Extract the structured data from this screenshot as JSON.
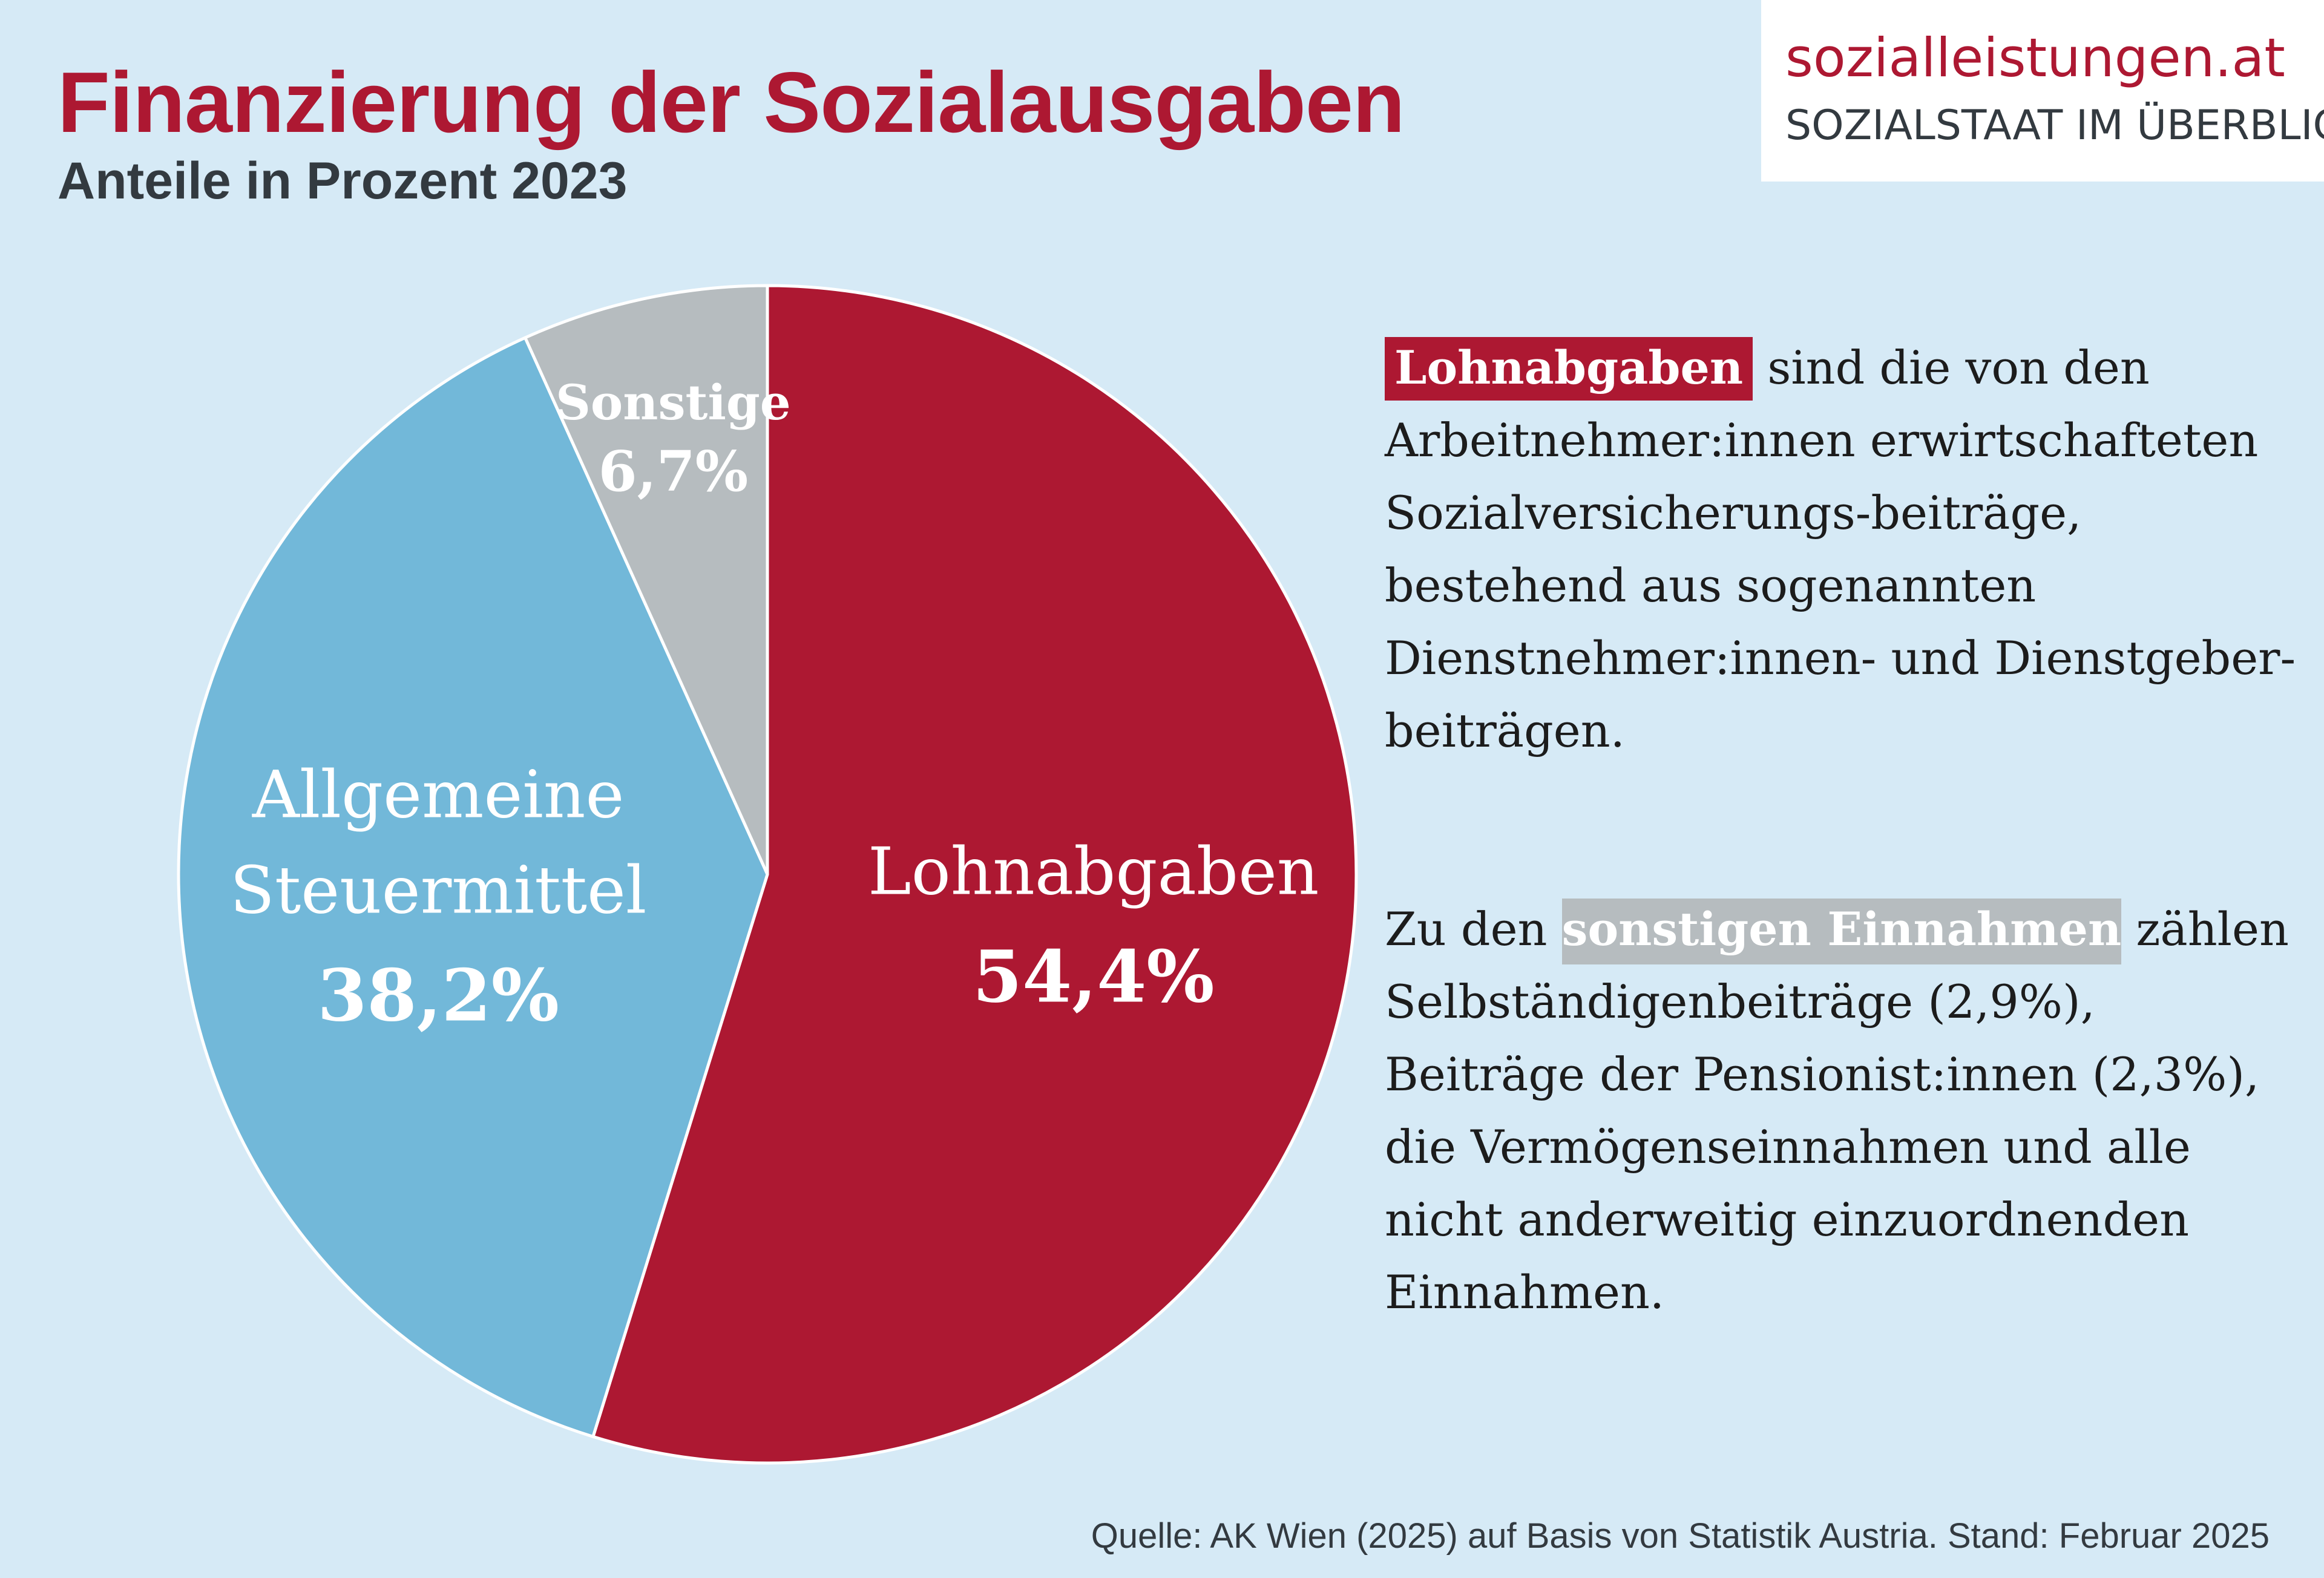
{
  "header": {
    "title": "Finanzierung der Sozialausgaben",
    "subtitle": "Anteile in Prozent 2023"
  },
  "logo": {
    "name": "sozialleistungen.at",
    "tagline": "SOZIALSTAAT IM ÜBERBLICK"
  },
  "colors": {
    "lohnabgaben": "#ad1832",
    "steuermittel": "#72b8d9",
    "sonstige": "#b6bcbf",
    "background": "#d6eaf6"
  },
  "chart_data": {
    "type": "pie",
    "title": "Finanzierung der Sozialausgaben",
    "subtitle": "Anteile in Prozent 2023",
    "start_angle_deg": 0,
    "direction": "clockwise",
    "slices": [
      {
        "key": "lohnabgaben",
        "label_lines": [
          "Lohnabgaben"
        ],
        "value": 54.4,
        "value_label": "54,4%",
        "color": "#ad1832"
      },
      {
        "key": "steuermittel",
        "label_lines": [
          "Allgemeine",
          "Steuermittel"
        ],
        "value": 38.2,
        "value_label": "38,2%",
        "color": "#72b8d9"
      },
      {
        "key": "sonstige",
        "label_lines": [
          "Sonstige"
        ],
        "value": 6.7,
        "value_label": "6,7%",
        "color": "#b6bcbf"
      }
    ]
  },
  "explanations": {
    "lohnabgaben": {
      "highlight": "Lohnabgaben",
      "text": " sind die von den Arbeitnehmer:innen erwirtschafteten Sozialversicherungs-beiträge, bestehend aus sogenannten Dienstnehmer:innen- und Dienstgeber-beiträgen."
    },
    "sonstige": {
      "before": "Zu den ",
      "highlight": "sonstigen Einnahmen",
      "text": " zählen Selbständigenbeiträge (2,9%), Beiträge der Pensionist:innen (2,3%), die Vermögenseinnahmen und alle nicht anderweitig einzuordnenden Einnahmen."
    }
  },
  "source": "Quelle: AK Wien (2025) auf Basis von Statistik Austria. Stand: Februar 2025"
}
